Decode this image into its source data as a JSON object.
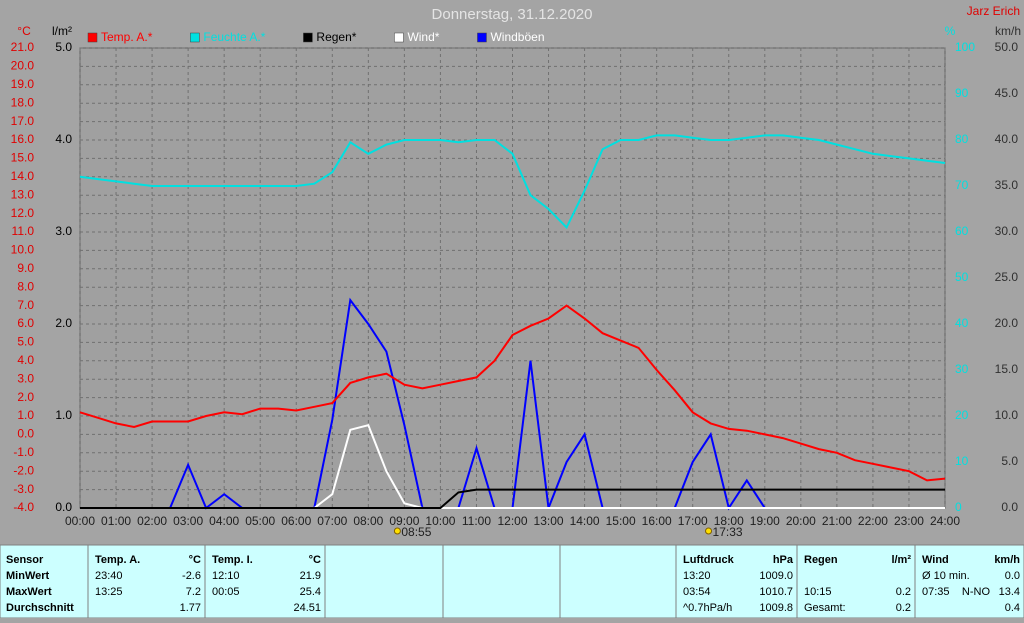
{
  "chart_data": {
    "type": "line",
    "title": "Donnerstag, 31.12.2020",
    "author": "Jarz Erich",
    "x": [
      0,
      0.5,
      1,
      1.5,
      2,
      2.5,
      3,
      3.5,
      4,
      4.5,
      5,
      5.5,
      6,
      6.5,
      7,
      7.5,
      8,
      8.5,
      9,
      9.5,
      10,
      10.5,
      11,
      11.5,
      12,
      12.5,
      13,
      13.5,
      14,
      14.5,
      15,
      15.5,
      16,
      16.5,
      17,
      17.5,
      18,
      18.5,
      19,
      19.5,
      20,
      20.5,
      21,
      21.5,
      22,
      22.5,
      23,
      23.5,
      24
    ],
    "xlim": [
      0,
      24
    ],
    "xticks": [
      {
        "value": 0,
        "label": "00:00"
      },
      {
        "value": 1,
        "label": "01:00"
      },
      {
        "value": 2,
        "label": "02:00"
      },
      {
        "value": 3,
        "label": "03:00"
      },
      {
        "value": 4,
        "label": "04:00"
      },
      {
        "value": 5,
        "label": "05:00"
      },
      {
        "value": 6,
        "label": "06:00"
      },
      {
        "value": 7,
        "label": "07:00"
      },
      {
        "value": 8,
        "label": "08:00"
      },
      {
        "value": 9,
        "label": "09:00"
      },
      {
        "value": 10,
        "label": "10:00"
      },
      {
        "value": 11,
        "label": "11:00"
      },
      {
        "value": 12,
        "label": "12:00"
      },
      {
        "value": 13,
        "label": "13:00"
      },
      {
        "value": 14,
        "label": "14:00"
      },
      {
        "value": 15,
        "label": "15:00"
      },
      {
        "value": 16,
        "label": "16:00"
      },
      {
        "value": 17,
        "label": "17:00"
      },
      {
        "value": 18,
        "label": "18:00"
      },
      {
        "value": 19,
        "label": "19:00"
      },
      {
        "value": 20,
        "label": "20:00"
      },
      {
        "value": 21,
        "label": "21:00"
      },
      {
        "value": 22,
        "label": "22:00"
      },
      {
        "value": 23,
        "label": "23:00"
      },
      {
        "value": 24,
        "label": "24:00"
      }
    ],
    "grid": true,
    "y_axes": [
      {
        "label": "°C",
        "color": "#e00000",
        "side": "left",
        "lim": [
          -4,
          21
        ],
        "ticks": [
          {
            "value": -4,
            "label": "-4.0"
          },
          {
            "value": -3,
            "label": "-3.0"
          },
          {
            "value": -2,
            "label": "-2.0"
          },
          {
            "value": -1,
            "label": "-1.0"
          },
          {
            "value": 0,
            "label": "0.0"
          },
          {
            "value": 1,
            "label": "1.0"
          },
          {
            "value": 2,
            "label": "2.0"
          },
          {
            "value": 3,
            "label": "3.0"
          },
          {
            "value": 4,
            "label": "4.0"
          },
          {
            "value": 5,
            "label": "5.0"
          },
          {
            "value": 6,
            "label": "6.0"
          },
          {
            "value": 7,
            "label": "7.0"
          },
          {
            "value": 8,
            "label": "8.0"
          },
          {
            "value": 9,
            "label": "9.0"
          },
          {
            "value": 10,
            "label": "10.0"
          },
          {
            "value": 11,
            "label": "11.0"
          },
          {
            "value": 12,
            "label": "12.0"
          },
          {
            "value": 13,
            "label": "13.0"
          },
          {
            "value": 14,
            "label": "14.0"
          },
          {
            "value": 15,
            "label": "15.0"
          },
          {
            "value": 16,
            "label": "16.0"
          },
          {
            "value": 17,
            "label": "17.0"
          },
          {
            "value": 18,
            "label": "18.0"
          },
          {
            "value": 19,
            "label": "19.0"
          },
          {
            "value": 20,
            "label": "20.0"
          },
          {
            "value": 21,
            "label": "21.0"
          }
        ]
      },
      {
        "label": "l/m²",
        "color": "#000000",
        "side": "left",
        "lim": [
          0,
          5
        ],
        "ticks": [
          {
            "value": 0,
            "label": "0.0"
          },
          {
            "value": 1,
            "label": "1.0"
          },
          {
            "value": 2,
            "label": "2.0"
          },
          {
            "value": 3,
            "label": "3.0"
          },
          {
            "value": 4,
            "label": "4.0"
          },
          {
            "value": 5,
            "label": "5.0"
          }
        ]
      },
      {
        "label": "%",
        "color": "#00e0e0",
        "side": "right",
        "lim": [
          0,
          100
        ],
        "ticks": [
          0,
          10,
          20,
          30,
          40,
          50,
          60,
          70,
          80,
          90,
          100
        ]
      },
      {
        "label": "km/h",
        "color": "#303030",
        "side": "right",
        "lim": [
          0,
          50
        ],
        "ticks": [
          {
            "value": 0,
            "label": "0.0"
          },
          {
            "value": 5,
            "label": "5.0"
          },
          {
            "value": 10,
            "label": "10.0"
          },
          {
            "value": 15,
            "label": "15.0"
          },
          {
            "value": 20,
            "label": "20.0"
          },
          {
            "value": 25,
            "label": "25.0"
          },
          {
            "value": 30,
            "label": "30.0"
          },
          {
            "value": 35,
            "label": "35.0"
          },
          {
            "value": 40,
            "label": "40.0"
          },
          {
            "value": 45,
            "label": "45.0"
          },
          {
            "value": 50,
            "label": "50.0"
          }
        ]
      }
    ],
    "series": [
      {
        "name": "Temp. A.*",
        "color": "#ff0000",
        "legend_color": "#ff0000",
        "axis": 0,
        "values": [
          1.2,
          0.9,
          0.6,
          0.4,
          0.7,
          0.7,
          0.7,
          1.0,
          1.2,
          1.1,
          1.4,
          1.4,
          1.3,
          1.5,
          1.7,
          2.8,
          3.1,
          3.3,
          2.7,
          2.5,
          2.7,
          2.9,
          3.1,
          4.0,
          5.4,
          5.9,
          6.3,
          7.0,
          6.3,
          5.5,
          5.1,
          4.7,
          3.5,
          2.4,
          1.2,
          0.6,
          0.3,
          0.2,
          0.0,
          -0.2,
          -0.5,
          -0.8,
          -1.0,
          -1.4,
          -1.6,
          -1.8,
          -2.0,
          -2.5,
          -2.4
        ]
      },
      {
        "name": "Feuchte A.*",
        "color": "#00e0e0",
        "legend_color": "#00e0e0",
        "axis": 2,
        "values": [
          72,
          71.5,
          71,
          70.5,
          70,
          70,
          70,
          70,
          70,
          70,
          70,
          70,
          70,
          70.5,
          73,
          79.5,
          77,
          79,
          80,
          80,
          80,
          79.5,
          80,
          80,
          77,
          68,
          65,
          61,
          69,
          78,
          80,
          80,
          81,
          81,
          80.5,
          80,
          80,
          80.5,
          81,
          81,
          80.5,
          80,
          79,
          78,
          77,
          76.5,
          76,
          75.5,
          75
        ]
      },
      {
        "name": "Regen*",
        "color": "#000000",
        "legend_color": "#000000",
        "axis": 1,
        "values": [
          0,
          0,
          0,
          0,
          0,
          0,
          0,
          0,
          0,
          0,
          0,
          0,
          0,
          0,
          0,
          0,
          0,
          0,
          0,
          0,
          0,
          0.17,
          0.2,
          0.2,
          0.2,
          0.2,
          0.2,
          0.2,
          0.2,
          0.2,
          0.2,
          0.2,
          0.2,
          0.2,
          0.2,
          0.2,
          0.2,
          0.2,
          0.2,
          0.2,
          0.2,
          0.2,
          0.2,
          0.2,
          0.2,
          0.2,
          0.2,
          0.2,
          0.2
        ]
      },
      {
        "name": "Wind*",
        "color": "#ffffff",
        "legend_color": "#ffffff",
        "axis": 3,
        "values": [
          0,
          0,
          0,
          0,
          0,
          0,
          0,
          0,
          0,
          0,
          0,
          0,
          0,
          0,
          1.5,
          8.5,
          9,
          4,
          0.5,
          0,
          0,
          0,
          0,
          0,
          0,
          0,
          0,
          0,
          0,
          0,
          0,
          0,
          0,
          0,
          0,
          0,
          0,
          0,
          0,
          0,
          0,
          0,
          0,
          0,
          0,
          0,
          0,
          0,
          0
        ]
      },
      {
        "name": "Windböen",
        "color": "#0000ff",
        "legend_color": "#ffffff",
        "axis": 3,
        "values": [
          0,
          0,
          0,
          0,
          0,
          0,
          4.7,
          0,
          1.5,
          0,
          0,
          0,
          0,
          0,
          9.6,
          22.6,
          20,
          17,
          9,
          0,
          0,
          0,
          6.5,
          0,
          0,
          16,
          0,
          5,
          8,
          0,
          0,
          0,
          0,
          0,
          5,
          8,
          0,
          3,
          0,
          0,
          0,
          0,
          0,
          0,
          0,
          0,
          0,
          0,
          0
        ]
      }
    ],
    "sun_marks": [
      {
        "value": 8.917,
        "label": "08:55"
      },
      {
        "value": 17.55,
        "label": "17:33"
      }
    ]
  },
  "table": {
    "sensor": [
      "Sensor",
      "MinWert",
      "MaxWert",
      "Durchschnitt"
    ],
    "groups": [
      {
        "header": [
          "Temp. A.",
          "°C"
        ],
        "rows": [
          [
            "23:40",
            "-2.6"
          ],
          [
            "13:25",
            "7.2"
          ],
          [
            "1.77"
          ]
        ]
      },
      {
        "header": [
          "Temp. I.",
          "°C"
        ],
        "rows": [
          [
            "12:10",
            "21.9"
          ],
          [
            "00:05",
            "25.4"
          ],
          [
            "24.51"
          ]
        ]
      },
      {
        "header": [
          "Luftdruck",
          "hPa"
        ],
        "rows": [
          [
            "13:20",
            "1009.0"
          ],
          [
            "03:54",
            "1010.7"
          ],
          [
            "^0.7hPa/h",
            "1009.8"
          ]
        ]
      },
      {
        "header": [
          "Regen",
          "l/m²"
        ],
        "rows": [
          [],
          [
            "10:15",
            "0.2"
          ],
          [
            "Gesamt:",
            "0.2"
          ]
        ]
      },
      {
        "header": [
          "Wind",
          "km/h"
        ],
        "rows": [
          [
            "Ø 10 min.",
            "0.0"
          ],
          [
            "07:35",
            "N-NO",
            "13.4"
          ],
          [
            "0.4"
          ]
        ]
      }
    ]
  }
}
